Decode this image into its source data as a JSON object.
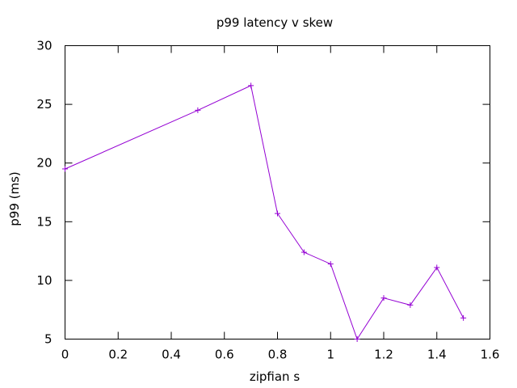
{
  "chart_data": {
    "type": "line",
    "title": "p99 latency v skew",
    "xlabel": "zipfian s",
    "ylabel": "p99 (ms)",
    "xlim": [
      0,
      1.6
    ],
    "ylim": [
      5,
      30
    ],
    "xticks": [
      "0",
      "0.2",
      "0.4",
      "0.6",
      "0.8",
      "1",
      "1.2",
      "1.4",
      "1.6"
    ],
    "yticks": [
      "5",
      "10",
      "15",
      "20",
      "25",
      "30"
    ],
    "grid": false,
    "legend": "none",
    "series": [
      {
        "color": "#9400d3",
        "marker": "plus",
        "x": [
          0,
          0.5,
          0.7,
          0.8,
          0.9,
          1.0,
          1.1,
          1.2,
          1.3,
          1.4,
          1.5
        ],
        "y": [
          19.5,
          24.5,
          26.6,
          15.7,
          12.4,
          11.4,
          5.0,
          8.5,
          7.9,
          11.1,
          6.8
        ]
      }
    ]
  }
}
